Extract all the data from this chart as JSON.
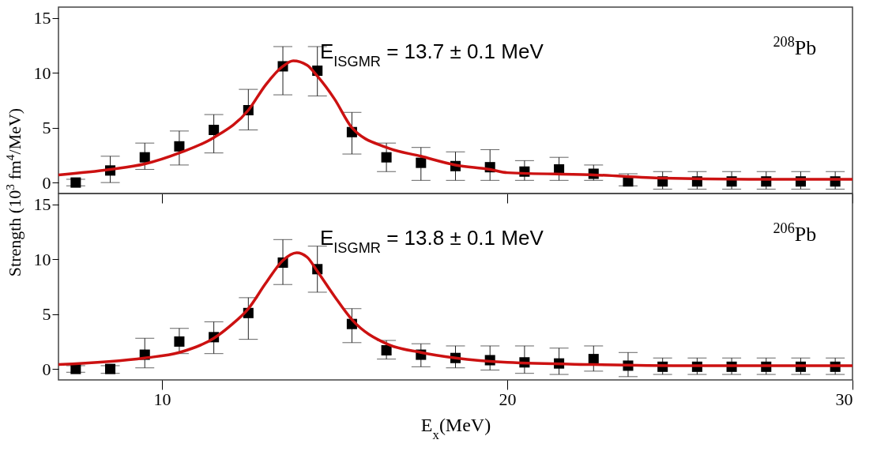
{
  "chart_data": [
    {
      "type": "scatter",
      "xlim": [
        7,
        30
      ],
      "xticks": [
        10,
        20,
        30
      ],
      "ylim": [
        -1,
        16
      ],
      "yticks": [
        0,
        5,
        10,
        15
      ],
      "tick_labels": "y",
      "grid": false,
      "annotations": [
        "E$_{ISGMR}$ = 13.7 ± 0.1 MeV",
        "$^{208}$Pb"
      ],
      "series": [
        {
          "type": "scatter",
          "marker": "square",
          "color": "#000000",
          "x": [
            7.5,
            8.5,
            9.5,
            10.5,
            11.5,
            12.5,
            13.5,
            14.5,
            15.5,
            16.5,
            17.5,
            18.5,
            19.5,
            20.5,
            21.5,
            22.5,
            23.5,
            24.5,
            25.5,
            26.5,
            27.5,
            28.5,
            29.5
          ],
          "values": [
            0.0,
            1.1,
            2.3,
            3.3,
            4.8,
            6.6,
            10.6,
            10.2,
            4.6,
            2.3,
            1.8,
            1.5,
            1.4,
            1.0,
            1.2,
            0.8,
            0.1,
            0.1,
            0.1,
            0.1,
            0.1,
            0.1,
            0.1
          ],
          "errors": [
            [
              -0.3,
              0.3
            ],
            [
              0.0,
              2.4
            ],
            [
              1.2,
              3.6
            ],
            [
              1.6,
              4.7
            ],
            [
              2.7,
              6.2
            ],
            [
              4.8,
              8.5
            ],
            [
              8.0,
              12.4
            ],
            [
              7.9,
              12.4
            ],
            [
              2.6,
              6.4
            ],
            [
              1.0,
              3.6
            ],
            [
              0.2,
              3.2
            ],
            [
              0.2,
              2.8
            ],
            [
              0.2,
              3.0
            ],
            [
              0.2,
              2.0
            ],
            [
              0.2,
              2.3
            ],
            [
              0.2,
              1.6
            ],
            [
              -0.3,
              0.8
            ],
            [
              -0.6,
              1.0
            ],
            [
              -0.6,
              1.0
            ],
            [
              -0.6,
              1.0
            ],
            [
              -0.6,
              1.0
            ],
            [
              -0.6,
              1.0
            ],
            [
              -0.6,
              1.0
            ]
          ]
        },
        {
          "type": "line",
          "marker": "none",
          "color": "#cc1111",
          "x": [
            7,
            8.5,
            9.5,
            10.5,
            11.5,
            12.5,
            13,
            13.5,
            13.8,
            14.2,
            14.5,
            15,
            15.5,
            16.5,
            17.5,
            18.5,
            19.5,
            20,
            22.5,
            24.5,
            27,
            30
          ],
          "values": [
            0.7,
            1.2,
            1.7,
            2.7,
            4.1,
            6.6,
            8.9,
            10.6,
            11.1,
            10.7,
            9.7,
            7.6,
            5.0,
            3.2,
            2.4,
            1.6,
            1.2,
            0.9,
            0.7,
            0.4,
            0.3,
            0.3
          ]
        }
      ]
    },
    {
      "type": "scatter",
      "xlim": [
        7,
        30
      ],
      "xticks": [
        10,
        20,
        30
      ],
      "ylim": [
        -1,
        16
      ],
      "yticks": [
        0,
        5,
        10,
        15
      ],
      "grid": false,
      "xlabel": "E$_{x}$(MeV)",
      "ylabel": "Strength (10$^{3}$ fm$^{4}$/MeV)",
      "annotations": [
        "E$_{ISGMR}$ = 13.8 ± 0.1 MeV",
        "$^{206}$Pb"
      ],
      "series": [
        {
          "type": "scatter",
          "marker": "square",
          "color": "#000000",
          "x": [
            7.5,
            8.5,
            9.5,
            10.5,
            11.5,
            12.5,
            13.5,
            14.5,
            15.5,
            16.5,
            17.5,
            18.5,
            19.5,
            20.5,
            21.5,
            22.5,
            23.5,
            24.5,
            25.5,
            26.5,
            27.5,
            28.5,
            29.5
          ],
          "values": [
            0.0,
            0.0,
            1.3,
            2.5,
            2.9,
            5.1,
            9.7,
            9.1,
            4.1,
            1.7,
            1.3,
            1.0,
            0.8,
            0.6,
            0.5,
            0.9,
            0.3,
            0.2,
            0.2,
            0.2,
            0.2,
            0.2,
            0.2
          ],
          "errors": [
            [
              -0.3,
              0.3
            ],
            [
              -0.4,
              0.3
            ],
            [
              0.1,
              2.8
            ],
            [
              1.4,
              3.7
            ],
            [
              1.4,
              4.3
            ],
            [
              2.7,
              6.5
            ],
            [
              7.7,
              11.8
            ],
            [
              7.0,
              11.2
            ],
            [
              2.4,
              5.5
            ],
            [
              0.9,
              2.6
            ],
            [
              0.2,
              2.3
            ],
            [
              0.1,
              2.1
            ],
            [
              -0.1,
              2.1
            ],
            [
              -0.4,
              2.1
            ],
            [
              -0.5,
              1.9
            ],
            [
              -0.2,
              2.1
            ],
            [
              -0.7,
              1.5
            ],
            [
              -0.5,
              1.0
            ],
            [
              -0.5,
              1.0
            ],
            [
              -0.5,
              1.0
            ],
            [
              -0.5,
              1.0
            ],
            [
              -0.5,
              1.0
            ],
            [
              -0.5,
              1.0
            ]
          ]
        },
        {
          "type": "line",
          "marker": "none",
          "color": "#cc1111",
          "x": [
            7,
            9.5,
            10.5,
            11.5,
            12,
            12.5,
            13,
            13.5,
            13.9,
            14.2,
            14.5,
            15,
            15.5,
            16.5,
            17.5,
            18.5,
            20,
            22.5,
            25,
            30
          ],
          "values": [
            0.4,
            1.0,
            1.5,
            2.8,
            4.0,
            5.5,
            7.8,
            9.9,
            10.6,
            10.2,
            8.9,
            6.6,
            4.5,
            2.3,
            1.5,
            1.0,
            0.6,
            0.4,
            0.3,
            0.3
          ]
        }
      ]
    }
  ]
}
